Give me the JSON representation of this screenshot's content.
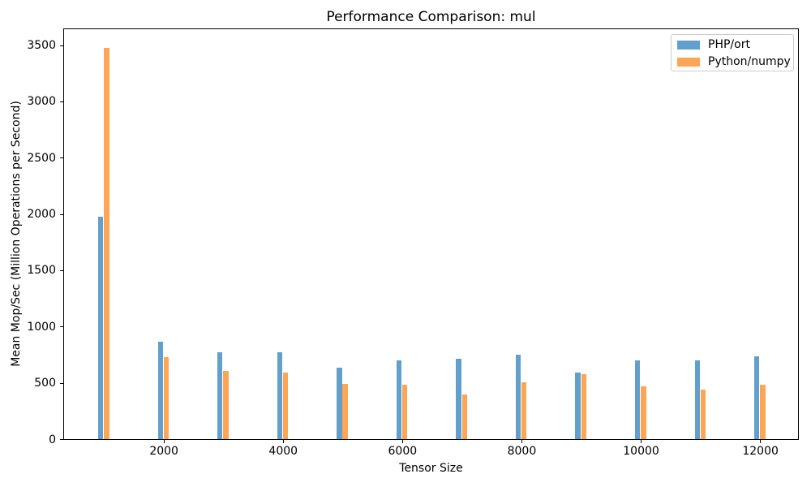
{
  "chart_data": {
    "type": "bar",
    "title": "Performance Comparison: mul",
    "xlabel": "Tensor Size",
    "ylabel": "Mean Mop/Sec (Million Operations per Second)",
    "categories": [
      1000,
      2000,
      3000,
      4000,
      5000,
      6000,
      7000,
      8000,
      9000,
      10000,
      11000,
      12000
    ],
    "series": [
      {
        "name": "PHP/ort",
        "color": "#62A0CB",
        "values": [
          1980,
          870,
          775,
          775,
          640,
          705,
          715,
          755,
          595,
          705,
          705,
          740
        ]
      },
      {
        "name": "Python/numpy",
        "color": "#FFA556",
        "values": [
          3480,
          735,
          610,
          595,
          495,
          490,
          400,
          510,
          580,
          470,
          440,
          485
        ]
      }
    ],
    "ylim": [
      0,
      3648
    ],
    "yticks": [
      0,
      500,
      1000,
      1500,
      2000,
      2500,
      3000,
      3500
    ],
    "xticks": [
      2000,
      4000,
      6000,
      8000,
      10000,
      12000
    ],
    "legend_position": "upper right",
    "grid": false
  }
}
